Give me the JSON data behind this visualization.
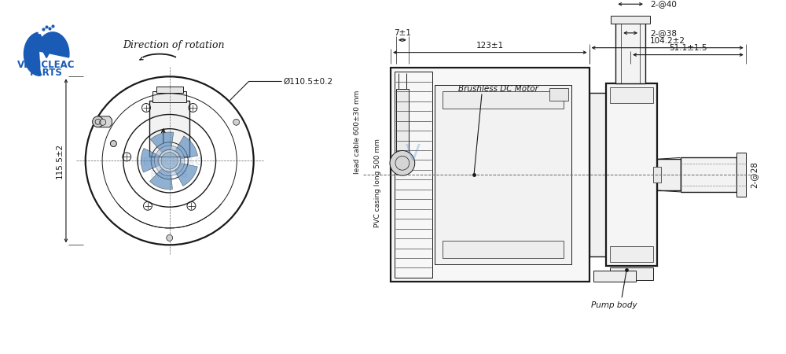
{
  "bg_color": "#ffffff",
  "line_color": "#1a1a1a",
  "logo_blue": "#1a5bb5",
  "watermark_blue": "#5588cc",
  "logo_text1": "VEHICLEAC",
  "logo_text2": "PARTS",
  "direction_text": "Direction of rotation",
  "dim_115": "115.5±2",
  "dim_110": "Ø110.5±0.2",
  "dim_123": "123±1",
  "dim_7": "7±1",
  "dim_104": "104.2±2",
  "dim_51": "51.1±1.5",
  "dim_2_40": "2-@40",
  "dim_2_38": "2-@38",
  "dim_2_28": "2-@28",
  "label_motor": "Brushless DC Motor",
  "label_pump": "Pump body",
  "label_cable": "lead cable 600±30 mm",
  "label_pvc": "PVC casing long 500 mm"
}
